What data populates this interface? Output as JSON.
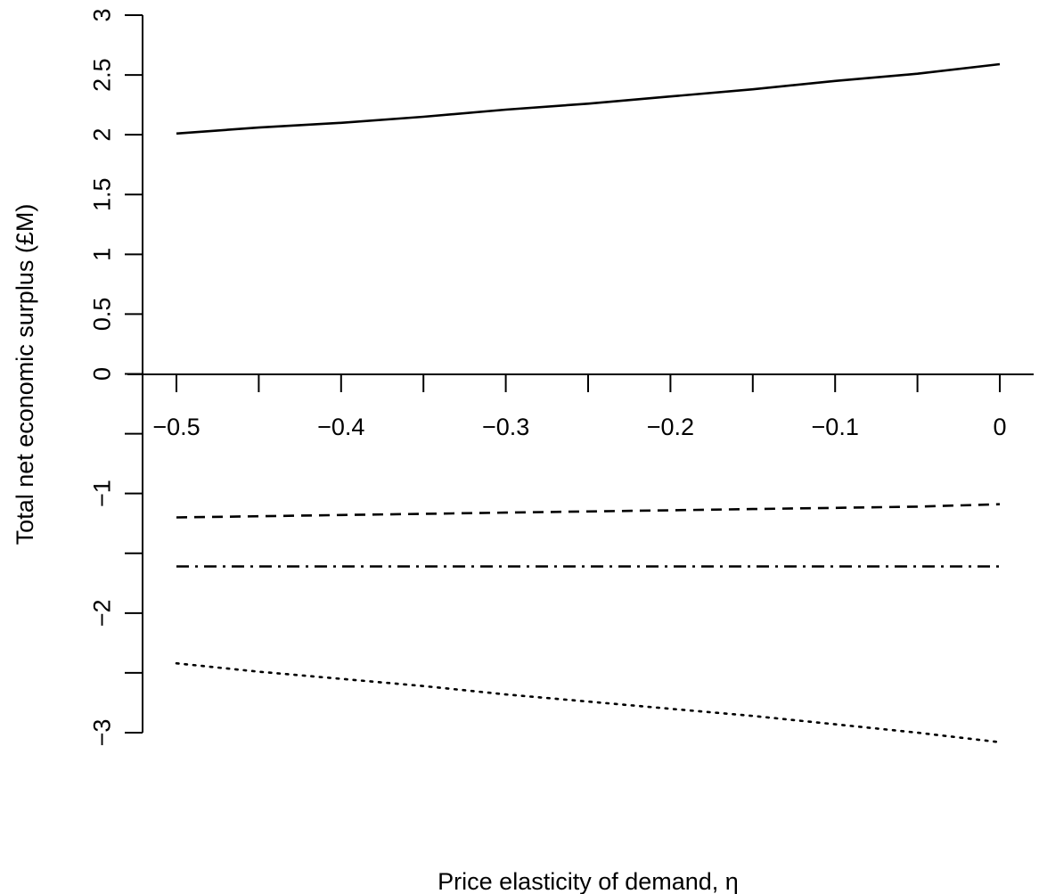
{
  "chart_data": {
    "type": "line",
    "title": "",
    "xlabel": "Price elasticity of demand, η",
    "ylabel": "Total net economic surplus (£M)",
    "xlim": [
      -0.5,
      0
    ],
    "ylim": [
      -3,
      3
    ],
    "x_ticks": [
      -0.5,
      -0.45,
      -0.4,
      -0.35,
      -0.3,
      -0.25,
      -0.2,
      -0.15,
      -0.1,
      -0.05,
      0
    ],
    "x_tick_labels": [
      "−0.5",
      "",
      "−0.4",
      "",
      "−0.3",
      "",
      "−0.2",
      "",
      "−0.1",
      "",
      "0"
    ],
    "y_ticks": [
      -3,
      -2.5,
      -2,
      -1.5,
      -1,
      -0.5,
      0,
      0.5,
      1,
      1.5,
      2,
      2.5,
      3
    ],
    "y_tick_labels": [
      "−3",
      "",
      "−2",
      "",
      "−1",
      "",
      "0",
      "0.5",
      "1",
      "1.5",
      "2",
      "2.5",
      "3"
    ],
    "x": [
      -0.5,
      -0.45,
      -0.4,
      -0.35,
      -0.3,
      -0.25,
      -0.2,
      -0.15,
      -0.1,
      -0.05,
      0
    ],
    "series": [
      {
        "style": "solid",
        "values": [
          2.01,
          2.06,
          2.1,
          2.15,
          2.21,
          2.26,
          2.32,
          2.38,
          2.45,
          2.51,
          2.59
        ]
      },
      {
        "style": "dashed",
        "values": [
          -1.2,
          -1.19,
          -1.18,
          -1.17,
          -1.16,
          -1.15,
          -1.14,
          -1.13,
          -1.12,
          -1.11,
          -1.09
        ]
      },
      {
        "style": "dotdash",
        "values": [
          -1.61,
          -1.61,
          -1.61,
          -1.61,
          -1.61,
          -1.61,
          -1.61,
          -1.61,
          -1.61,
          -1.61,
          -1.61
        ]
      },
      {
        "style": "dotted",
        "values": [
          -2.42,
          -2.49,
          -2.55,
          -2.61,
          -2.68,
          -2.74,
          -2.8,
          -2.86,
          -2.93,
          -3.0,
          -3.08
        ]
      }
    ],
    "grid": false,
    "legend": "none"
  }
}
